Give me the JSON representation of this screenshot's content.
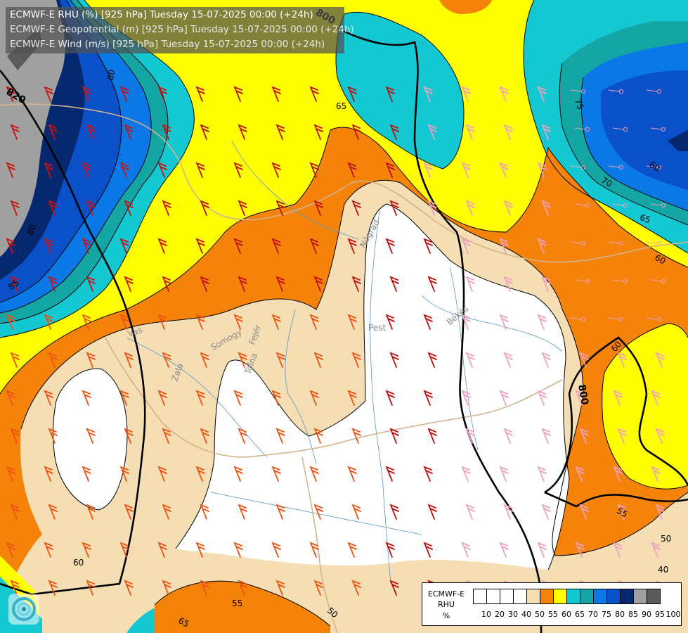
{
  "header": {
    "line1": "ECMWF-E RHU (%) [925 hPa] Tuesday 15-07-2025 00:00 (+24h)",
    "line2": "ECMWF-E Geopotential (m) [925 hPa] Tuesday 15-07-2025 00:00 (+24h)",
    "line3": "ECMWF-E Wind (m/s) [925 hPa] Tuesday 15-07-2025 00:00 (+24h)"
  },
  "legend": {
    "model": "ECMWF-E",
    "variable": "RHU",
    "unit": "%",
    "ticks": [
      "10",
      "20",
      "30",
      "40",
      "50",
      "55",
      "60",
      "65",
      "70",
      "75",
      "80",
      "85",
      "90",
      "95",
      "100"
    ],
    "colors": [
      "#ffffff",
      "#ffffff",
      "#ffffff",
      "#ffffff",
      "#f5deb3",
      "#f5830a",
      "#ffff00",
      "#14c8d2",
      "#14a5a5",
      "#0a78e6",
      "#0a50c8",
      "#05286e",
      "#a0a0a0",
      "#5a5a5a"
    ]
  },
  "colors": {
    "rhu_50_55": "#f5deb3",
    "rhu_55_60": "#f5830a",
    "rhu_60_65": "#ffff00",
    "rhu_65_70": "#14c8d2",
    "rhu_70_75": "#14a5a5",
    "rhu_75_80": "#0a78e6",
    "rhu_80_85": "#0a50c8",
    "rhu_85_90": "#05286e",
    "rhu_90_95": "#a0a0a0",
    "rhu_95_100": "#5a5a5a"
  },
  "geopotential_labels": [
    "800",
    "820",
    "800"
  ],
  "rhu_contour_labels": [
    "80",
    "65",
    "75",
    "70",
    "60",
    "65",
    "60",
    "60",
    "55",
    "50",
    "40",
    "50",
    "55",
    "60",
    "65",
    "80",
    "85"
  ],
  "region_labels": [
    "Vas",
    "Zala",
    "Somogy",
    "Fejér",
    "Tolna",
    "Pest",
    "Nógrád",
    "Békés"
  ],
  "logo_icon": "ecmwf-swirl-icon"
}
